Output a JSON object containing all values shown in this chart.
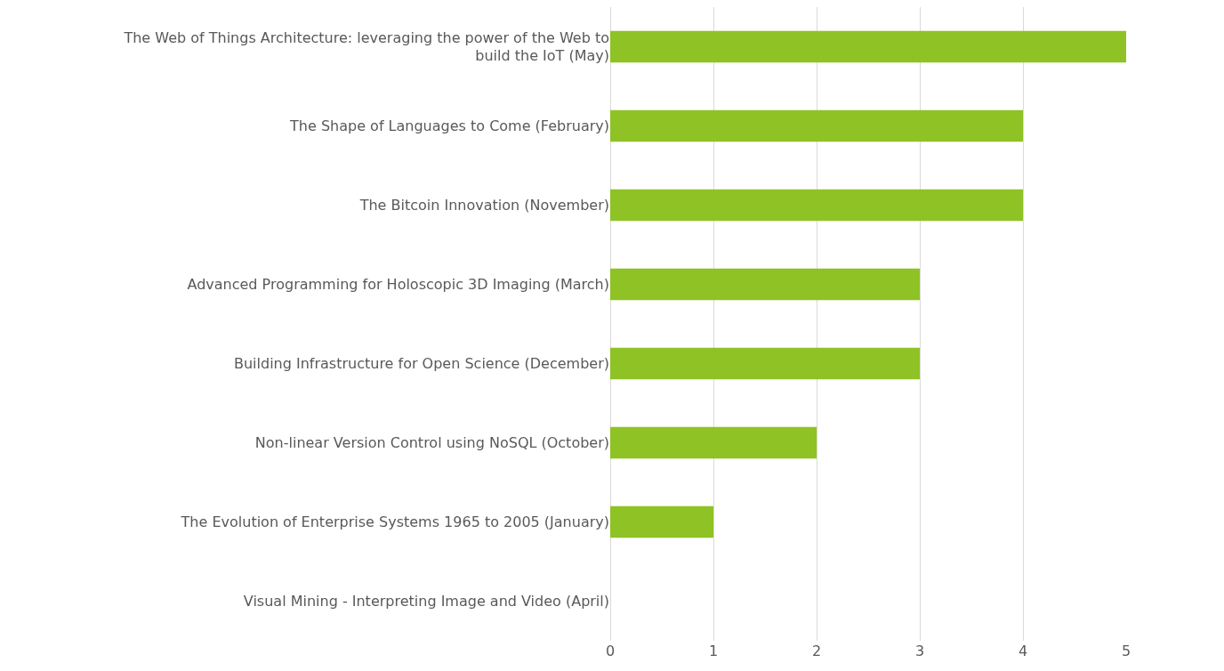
{
  "chart_data": {
    "type": "bar",
    "orientation": "horizontal",
    "categories": [
      "The Web of Things Architecture: leveraging the power of the Web to\nbuild the IoT (May)",
      "The Shape of Languages to Come (February)",
      "The Bitcoin Innovation (November)",
      "Advanced Programming for Holoscopic 3D Imaging (March)",
      "Building Infrastructure for Open Science (December)",
      "Non-linear Version Control using NoSQL (October)",
      "The Evolution of Enterprise Systems 1965 to 2005 (January)",
      "Visual Mining - Interpreting Image and Video (April)"
    ],
    "values": [
      5,
      4,
      4,
      3,
      3,
      2,
      1,
      0
    ],
    "color": "#8fc224",
    "xlim": [
      0,
      5
    ],
    "xticks": [
      0,
      1,
      2,
      3,
      4,
      5
    ],
    "grid": "x",
    "legend": false
  }
}
